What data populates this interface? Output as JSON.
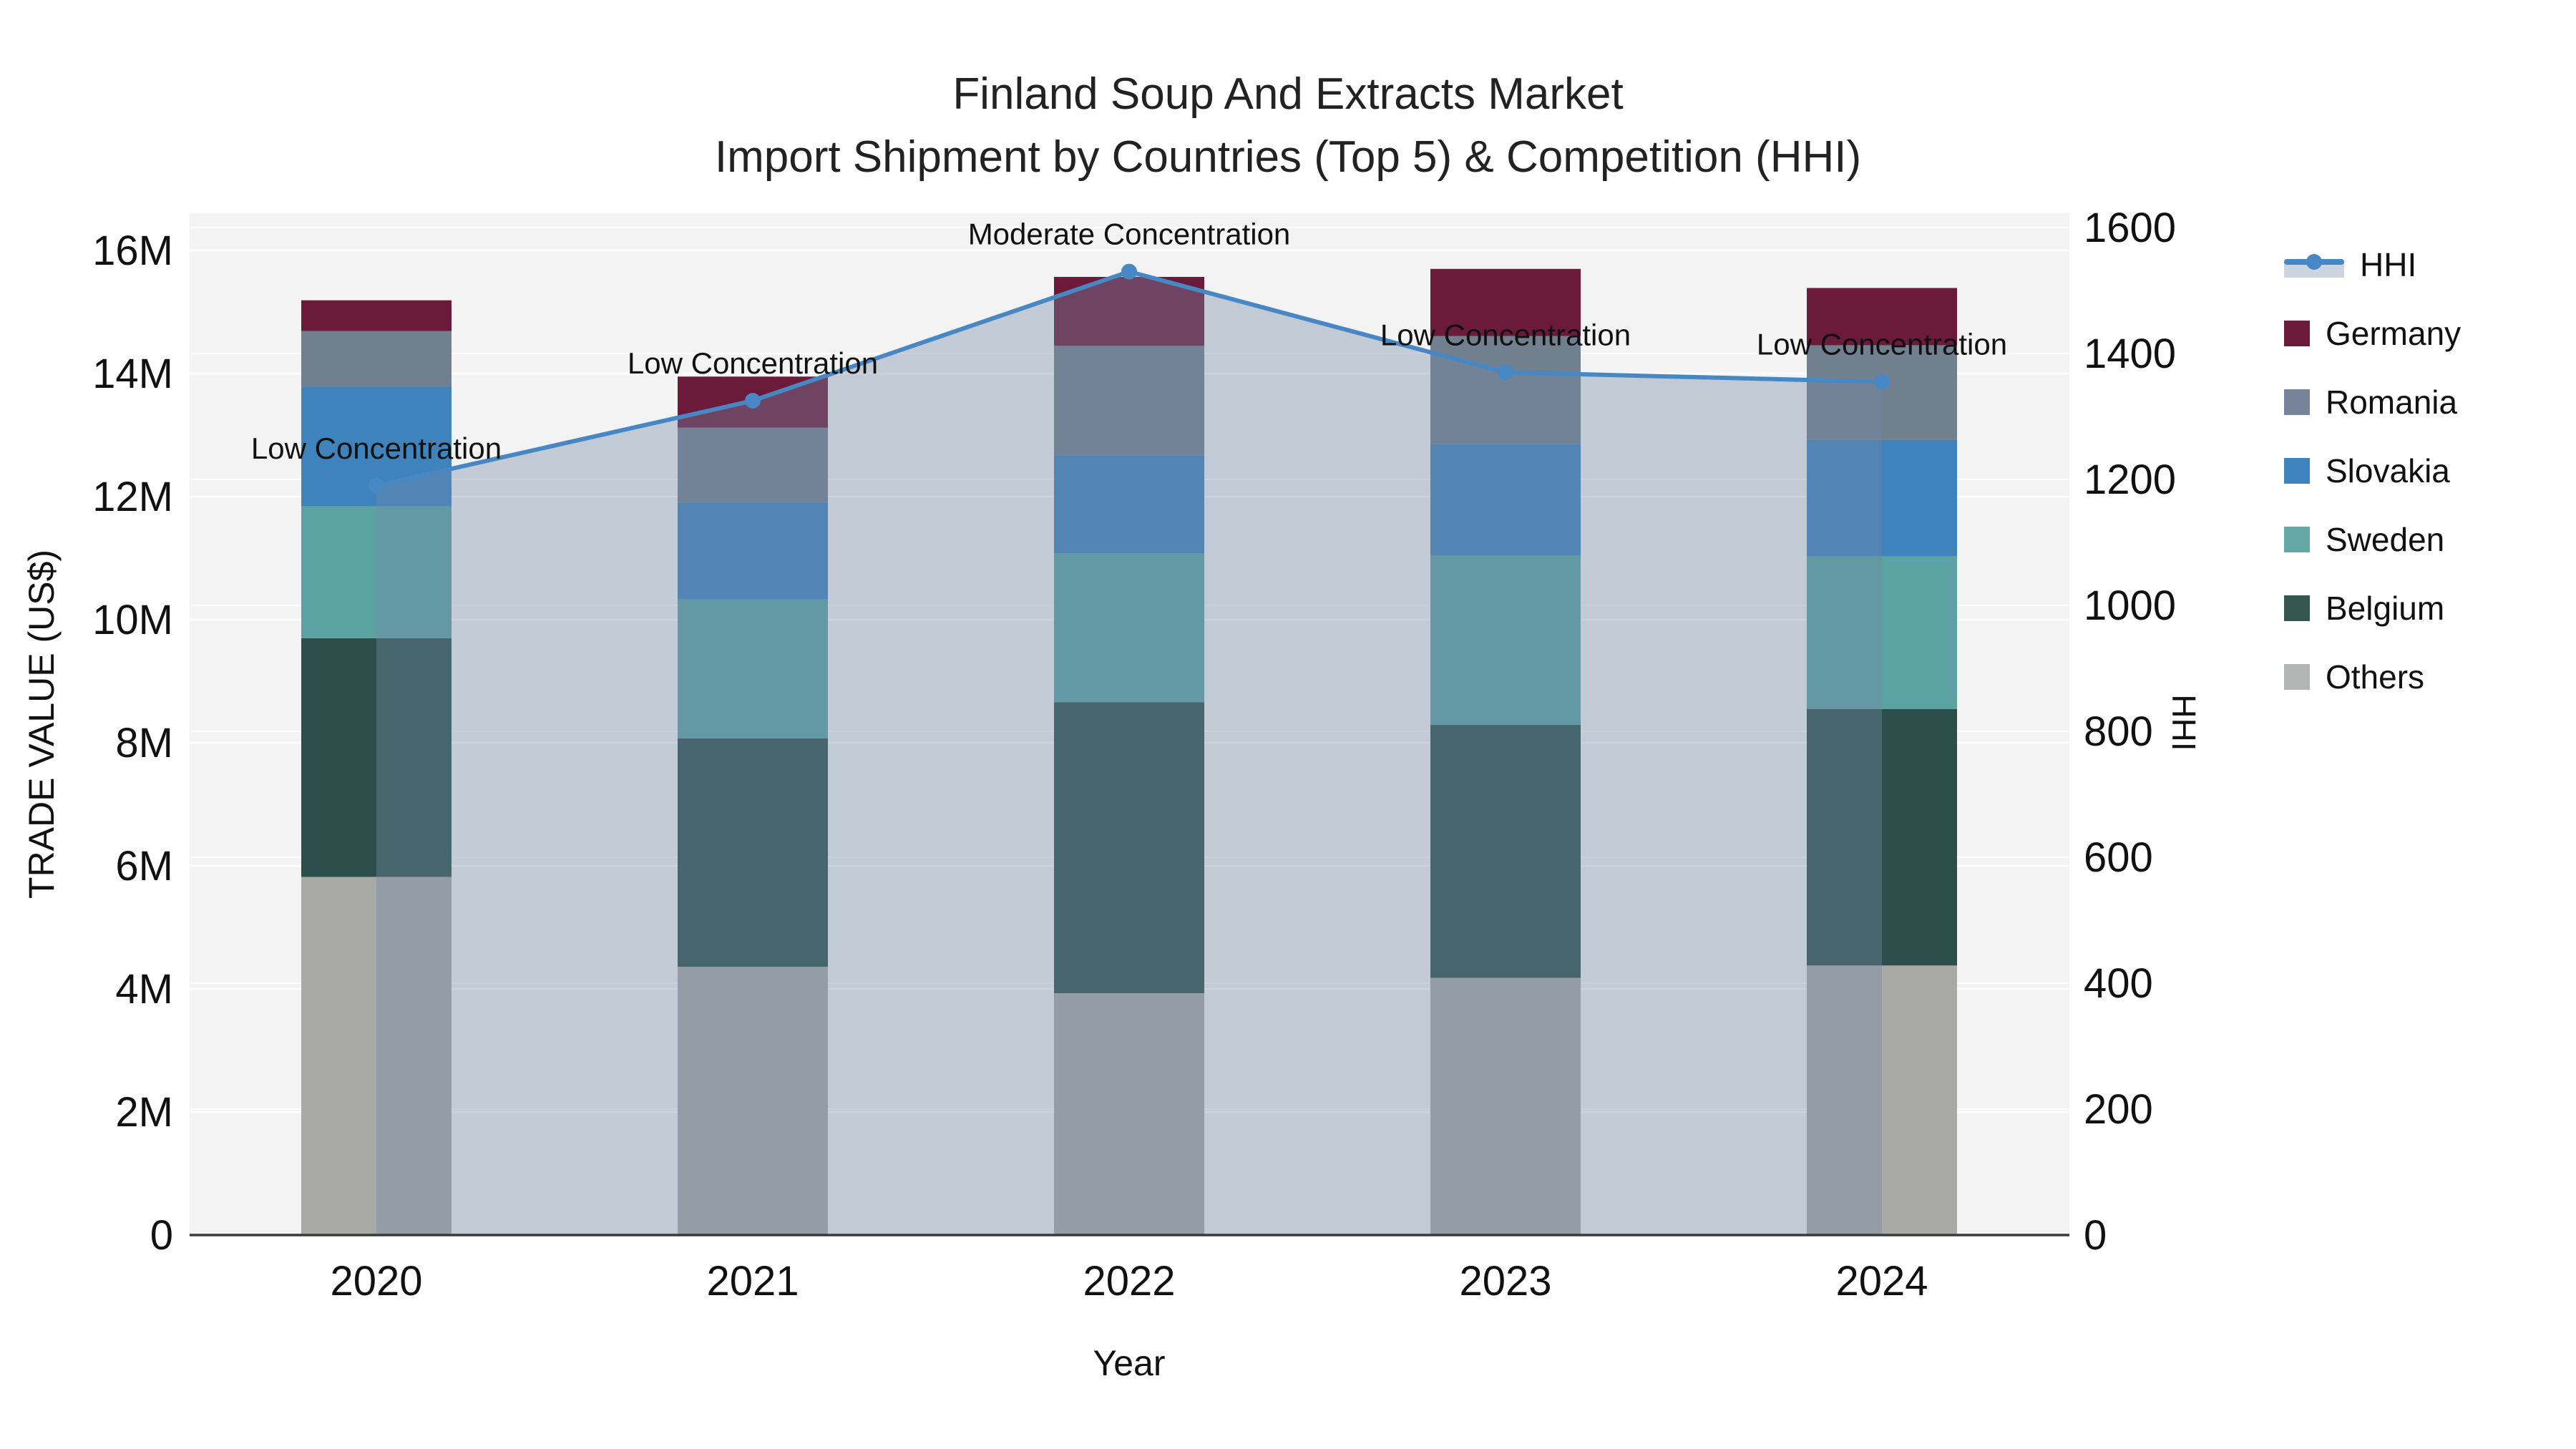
{
  "figure": {
    "title_line1": "Finland Soup And Extracts Market",
    "title_line2": "Import Shipment by Countries (Top 5) & Competition (HHI)"
  },
  "axes": {
    "left_title": "TRADE VALUE (US$)",
    "left_ticks": [
      "0",
      "2M",
      "4M",
      "6M",
      "8M",
      "10M",
      "12M",
      "14M",
      "16M"
    ],
    "right_title": "HHI",
    "right_ticks": [
      "0",
      "200",
      "400",
      "600",
      "800",
      "1000",
      "1200",
      "1400",
      "1600"
    ],
    "x_title": "Year"
  },
  "legend": {
    "items": [
      {
        "label": "HHI",
        "type": "line",
        "color": "#4788c4"
      },
      {
        "label": "Germany",
        "type": "swatch",
        "color": "#6b1a39"
      },
      {
        "label": "Romania",
        "type": "swatch",
        "color": "#76849a"
      },
      {
        "label": "Slovakia",
        "type": "swatch",
        "color": "#3f83bd"
      },
      {
        "label": "Sweden",
        "type": "swatch",
        "color": "#63a8a6"
      },
      {
        "label": "Belgium",
        "type": "swatch",
        "color": "#35564f"
      },
      {
        "label": "Others",
        "type": "swatch",
        "color": "#b2b5b3"
      }
    ]
  },
  "chart_data": {
    "type": "bar",
    "subtype": "stacked-bars-with-line-overlay",
    "title": "Finland Soup And Extracts Market — Import Shipment by Countries (Top 5) & Competition (HHI)",
    "xlabel": "Year",
    "ylabel": "TRADE VALUE (US$)",
    "y2label": "HHI",
    "categories": [
      "2020",
      "2021",
      "2022",
      "2023",
      "2024"
    ],
    "units": "millions US$",
    "ylim": [
      0,
      16.6
    ],
    "y2lim": [
      0,
      1600
    ],
    "grid": true,
    "legend_position": "right",
    "series": [
      {
        "name": "Others",
        "values": [
          5.82,
          4.36,
          3.93,
          4.18,
          4.38
        ],
        "color": "#a9a9a6"
      },
      {
        "name": "Belgium",
        "values": [
          3.88,
          3.71,
          4.73,
          4.11,
          4.17
        ],
        "color": "#2d4f4b"
      },
      {
        "name": "Sweden",
        "values": [
          2.14,
          2.26,
          2.42,
          2.75,
          2.48
        ],
        "color": "#5ba3a3"
      },
      {
        "name": "Slovakia",
        "values": [
          1.95,
          1.57,
          1.59,
          1.81,
          1.89
        ],
        "color": "#3f83bd"
      },
      {
        "name": "Romania",
        "values": [
          0.9,
          1.22,
          1.78,
          1.76,
          1.54
        ],
        "color": "#71808f"
      },
      {
        "name": "Germany",
        "values": [
          0.5,
          0.83,
          1.12,
          1.09,
          0.93
        ],
        "color": "#6b1a39"
      }
    ],
    "bar_totals": [
      15.19,
      13.95,
      15.57,
      15.7,
      15.39
    ],
    "line_series": {
      "name": "HHI",
      "axis": "right",
      "values": [
        1190,
        1325,
        1530,
        1370,
        1355
      ],
      "color": "#4788c4",
      "fill": "tozeroy",
      "fill_color": "rgba(115,136,166,0.38)"
    },
    "annotations": [
      {
        "x": "2020",
        "text": "Low Concentration"
      },
      {
        "x": "2021",
        "text": "Low Concentration"
      },
      {
        "x": "2022",
        "text": "Moderate Concentration"
      },
      {
        "x": "2023",
        "text": "Low Concentration"
      },
      {
        "x": "2024",
        "text": "Low Concentration"
      }
    ]
  }
}
